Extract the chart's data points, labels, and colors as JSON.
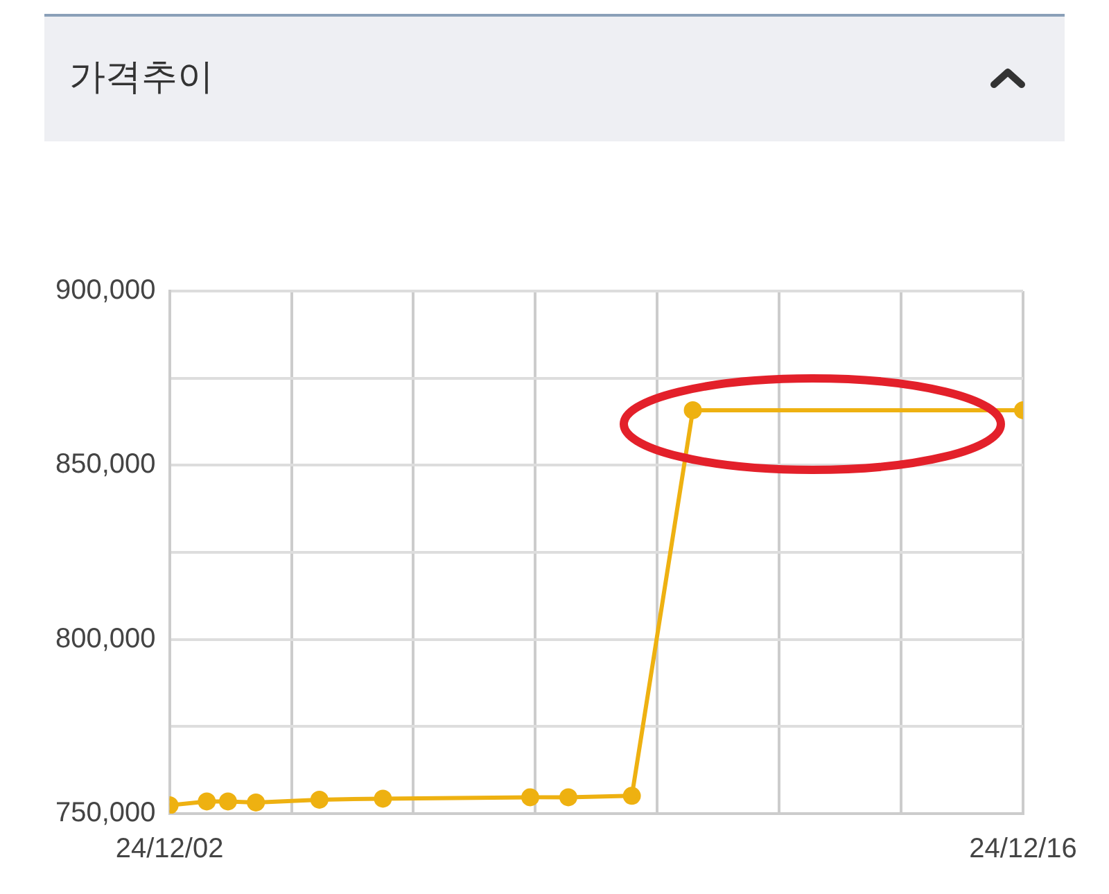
{
  "chart_data": {
    "type": "line",
    "title": "가격추이",
    "x": [
      "--12-02T00:00",
      "--12-02T14:40",
      "--12-02T23:00",
      "--12-03T10:00",
      "--12-04T11:00",
      "--12-05T12:00",
      "--12-07T22:00",
      "--12-08T13:00",
      "--12-09T14:00",
      "--12-10T14:00",
      "--12-16T00:00"
    ],
    "series": [
      {
        "color": "#eeb111",
        "values": [
          752400,
          753500,
          753500,
          753200,
          754000,
          754300,
          754700,
          754700,
          755100,
          865800,
          865800
        ]
      }
    ],
    "xlim": [
      "--12-02",
      "--12-16"
    ],
    "xticks": [
      {
        "value": "--12-02",
        "label": "24/12/02"
      },
      {
        "value": "--12-04",
        "label": null
      },
      {
        "value": "--12-06",
        "label": null
      },
      {
        "value": "--12-08",
        "label": null
      },
      {
        "value": "--12-10",
        "label": null
      },
      {
        "value": "--12-12",
        "label": null
      },
      {
        "value": "--12-14",
        "label": null
      },
      {
        "value": "--12-16",
        "label": "24/12/16"
      }
    ],
    "ylim": [
      750000,
      900000
    ],
    "yticks": [
      {
        "value": 750000,
        "label": "750,000"
      },
      {
        "value": 775000,
        "label": null
      },
      {
        "value": 800000,
        "label": "800,000"
      },
      {
        "value": 825000,
        "label": null
      },
      {
        "value": 850000,
        "label": "850,000"
      },
      {
        "value": 875000,
        "label": null
      },
      {
        "value": 900000,
        "label": "900,000"
      }
    ],
    "grid": true,
    "marker": "circle",
    "line_style": "solid",
    "legend": false
  }
}
